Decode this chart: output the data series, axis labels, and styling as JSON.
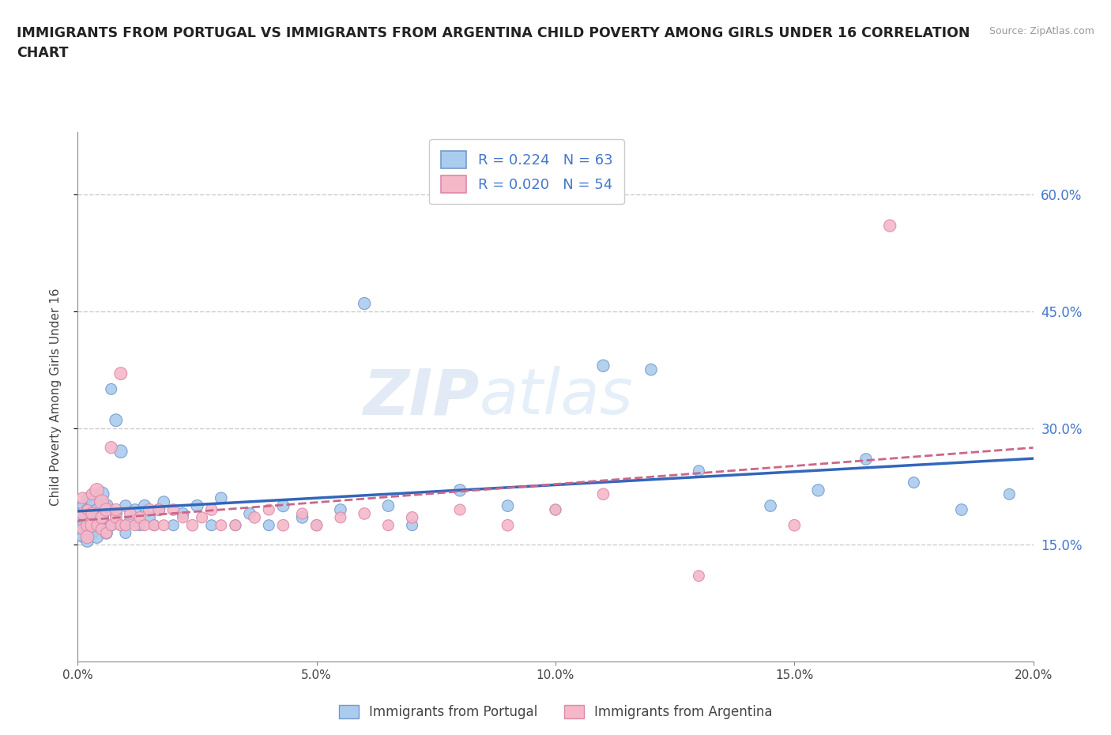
{
  "title": "IMMIGRANTS FROM PORTUGAL VS IMMIGRANTS FROM ARGENTINA CHILD POVERTY AMONG GIRLS UNDER 16 CORRELATION\nCHART",
  "ylabel": "Child Poverty Among Girls Under 16",
  "source": "Source: ZipAtlas.com",
  "watermark": "ZIPatlas",
  "xlim": [
    0.0,
    0.2
  ],
  "ylim": [
    0.0,
    0.68
  ],
  "xticks": [
    0.0,
    0.05,
    0.1,
    0.15,
    0.2
  ],
  "xtick_labels": [
    "0.0%",
    "5.0%",
    "10.0%",
    "15.0%",
    "20.0%"
  ],
  "ytick_labels_right": [
    "15.0%",
    "30.0%",
    "45.0%",
    "60.0%"
  ],
  "ytick_vals_right": [
    0.15,
    0.3,
    0.45,
    0.6
  ],
  "series1_label": "Immigrants from Portugal",
  "series1_color": "#aaccee",
  "series1_edge": "#7799cc",
  "series1_R": 0.224,
  "series1_N": 63,
  "series1_line_color": "#3366bb",
  "series2_label": "Immigrants from Argentina",
  "series2_color": "#f5b8c8",
  "series2_edge": "#dd88aa",
  "series2_R": "0.020",
  "series2_N": 54,
  "series2_line_color": "#cc6688",
  "grid_color": "#cccccc",
  "background_color": "#ffffff",
  "portugal_x": [
    0.001,
    0.001,
    0.001,
    0.001,
    0.002,
    0.002,
    0.002,
    0.002,
    0.003,
    0.003,
    0.003,
    0.003,
    0.004,
    0.004,
    0.004,
    0.005,
    0.005,
    0.005,
    0.006,
    0.006,
    0.007,
    0.007,
    0.008,
    0.008,
    0.009,
    0.009,
    0.01,
    0.01,
    0.011,
    0.012,
    0.013,
    0.014,
    0.015,
    0.016,
    0.017,
    0.018,
    0.02,
    0.022,
    0.025,
    0.028,
    0.03,
    0.033,
    0.036,
    0.04,
    0.043,
    0.047,
    0.05,
    0.055,
    0.06,
    0.065,
    0.07,
    0.08,
    0.09,
    0.1,
    0.11,
    0.12,
    0.13,
    0.145,
    0.155,
    0.165,
    0.175,
    0.185,
    0.195
  ],
  "portugal_y": [
    0.185,
    0.2,
    0.16,
    0.175,
    0.17,
    0.195,
    0.155,
    0.21,
    0.175,
    0.19,
    0.165,
    0.205,
    0.18,
    0.16,
    0.195,
    0.215,
    0.175,
    0.185,
    0.2,
    0.165,
    0.35,
    0.175,
    0.31,
    0.19,
    0.27,
    0.175,
    0.2,
    0.165,
    0.18,
    0.195,
    0.175,
    0.2,
    0.185,
    0.175,
    0.195,
    0.205,
    0.175,
    0.19,
    0.2,
    0.175,
    0.21,
    0.175,
    0.19,
    0.175,
    0.2,
    0.185,
    0.175,
    0.195,
    0.46,
    0.2,
    0.175,
    0.22,
    0.2,
    0.195,
    0.38,
    0.375,
    0.245,
    0.2,
    0.22,
    0.26,
    0.23,
    0.195,
    0.215
  ],
  "argentina_x": [
    0.001,
    0.001,
    0.001,
    0.002,
    0.002,
    0.002,
    0.003,
    0.003,
    0.003,
    0.004,
    0.004,
    0.005,
    0.005,
    0.005,
    0.006,
    0.006,
    0.007,
    0.007,
    0.008,
    0.008,
    0.009,
    0.009,
    0.01,
    0.011,
    0.012,
    0.013,
    0.014,
    0.015,
    0.016,
    0.017,
    0.018,
    0.02,
    0.022,
    0.024,
    0.026,
    0.028,
    0.03,
    0.033,
    0.037,
    0.04,
    0.043,
    0.047,
    0.05,
    0.055,
    0.06,
    0.065,
    0.07,
    0.08,
    0.09,
    0.1,
    0.11,
    0.13,
    0.15,
    0.17
  ],
  "argentina_y": [
    0.19,
    0.17,
    0.21,
    0.175,
    0.195,
    0.16,
    0.215,
    0.175,
    0.19,
    0.22,
    0.175,
    0.205,
    0.17,
    0.185,
    0.195,
    0.165,
    0.275,
    0.175,
    0.185,
    0.195,
    0.175,
    0.37,
    0.175,
    0.19,
    0.175,
    0.185,
    0.175,
    0.195,
    0.175,
    0.195,
    0.175,
    0.195,
    0.185,
    0.175,
    0.185,
    0.195,
    0.175,
    0.175,
    0.185,
    0.195,
    0.175,
    0.19,
    0.175,
    0.185,
    0.19,
    0.175,
    0.185,
    0.195,
    0.175,
    0.195,
    0.215,
    0.11,
    0.175,
    0.56
  ],
  "portugal_sizes": [
    120,
    80,
    100,
    90,
    150,
    110,
    130,
    100,
    200,
    160,
    140,
    110,
    170,
    130,
    120,
    180,
    140,
    160,
    150,
    120,
    100,
    110,
    130,
    120,
    140,
    100,
    110,
    100,
    120,
    110,
    100,
    120,
    110,
    100,
    120,
    110,
    100,
    110,
    120,
    100,
    110,
    100,
    110,
    100,
    120,
    110,
    100,
    110,
    120,
    110,
    100,
    120,
    110,
    100,
    120,
    110,
    100,
    110,
    120,
    110,
    100,
    110,
    100
  ],
  "argentina_sizes": [
    120,
    100,
    110,
    130,
    90,
    140,
    110,
    150,
    120,
    160,
    100,
    170,
    110,
    130,
    140,
    100,
    120,
    100,
    110,
    120,
    100,
    130,
    100,
    110,
    100,
    110,
    100,
    120,
    100,
    110,
    100,
    110,
    100,
    110,
    100,
    110,
    100,
    100,
    110,
    100,
    110,
    100,
    110,
    100,
    110,
    100,
    110,
    100,
    110,
    100,
    110,
    100,
    110,
    120
  ]
}
